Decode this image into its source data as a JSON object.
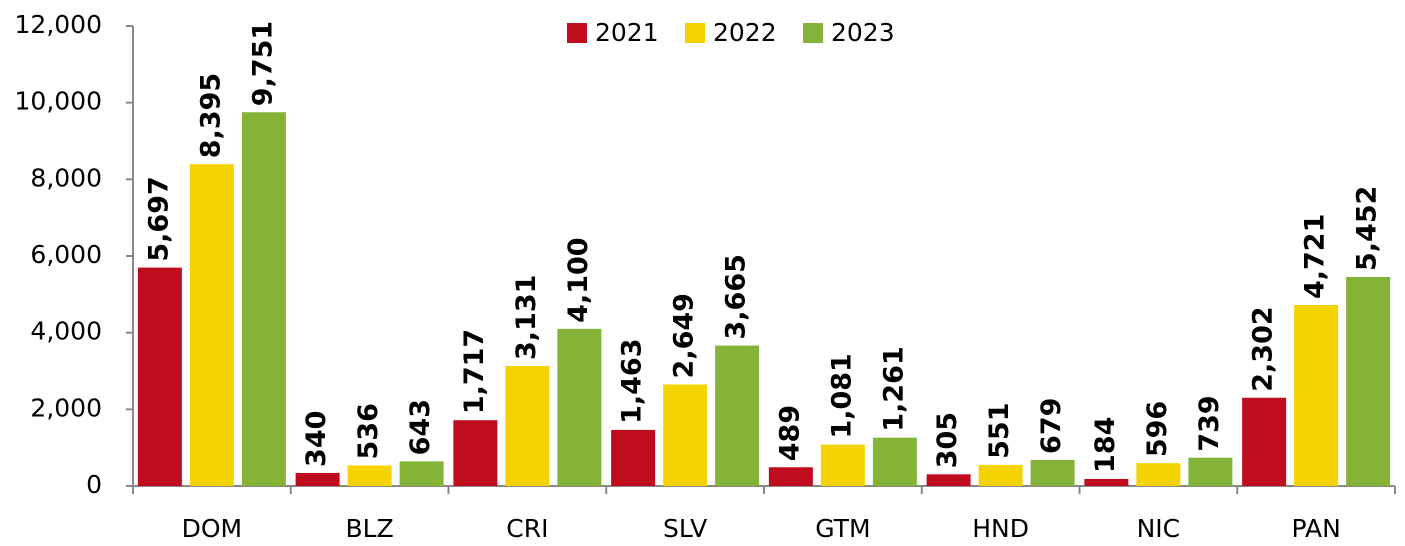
{
  "chart_data": {
    "type": "bar",
    "categories": [
      "DOM",
      "BLZ",
      "CRI",
      "SLV",
      "GTM",
      "HND",
      "NIC",
      "PAN"
    ],
    "series": [
      {
        "name": "2021",
        "color": "#c00d1e",
        "values": [
          5697,
          340,
          1717,
          1463,
          489,
          305,
          184,
          2302
        ],
        "value_labels": [
          "5,697",
          "340",
          "1,717",
          "1,463",
          "489",
          "305",
          "184",
          "2,302"
        ]
      },
      {
        "name": "2022",
        "color": "#f5d300",
        "values": [
          8395,
          536,
          3131,
          2649,
          1081,
          551,
          596,
          4721
        ],
        "value_labels": [
          "8,395",
          "536",
          "3,131",
          "2,649",
          "1,081",
          "551",
          "596",
          "4,721"
        ]
      },
      {
        "name": "2023",
        "color": "#84b338",
        "values": [
          9751,
          643,
          4100,
          3665,
          1261,
          679,
          739,
          5452
        ],
        "value_labels": [
          "9,751",
          "643",
          "4,100",
          "3,665",
          "1,261",
          "679",
          "739",
          "5,452"
        ]
      }
    ],
    "ylim": [
      0,
      12000
    ],
    "yticks": [
      0,
      {
        "value": 2000,
        "label": "2,000"
      },
      {
        "value": 4000,
        "label": "4,000"
      },
      {
        "value": 6000,
        "label": "6,000"
      },
      {
        "value": 8000,
        "label": "8,000"
      },
      {
        "value": 10000,
        "label": "10,000"
      },
      {
        "value": 12000,
        "label": "12,000"
      }
    ],
    "grid": false,
    "legend": "top"
  }
}
